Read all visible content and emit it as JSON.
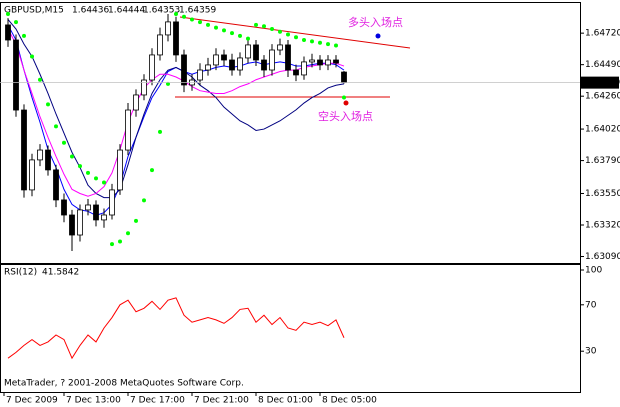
{
  "chart_data": [
    {
      "type": "candlestick",
      "title": "GBPUSD,M15",
      "open": [
        1.6478,
        1.6467,
        1.64159,
        1.63576,
        1.63795,
        1.63867,
        1.63722,
        1.63503,
        1.63393,
        1.63247,
        1.6343,
        1.63466,
        1.63357,
        1.63393,
        1.63576,
        1.63867,
        1.64159,
        1.64269,
        1.64378,
        1.64561,
        1.64707,
        1.64802,
        1.64561,
        1.64342,
        1.64378,
        1.64451,
        1.64488,
        1.64561,
        1.64524,
        1.64451,
        1.64539,
        1.64634,
        1.64524,
        1.64451,
        1.64597,
        1.64634,
        1.64451,
        1.64415,
        1.6451,
        1.64524,
        1.64488,
        1.64524,
        1.64436
      ],
      "high": [
        1.6483,
        1.6471,
        1.642,
        1.6384,
        1.6391,
        1.639,
        1.6376,
        1.6355,
        1.6343,
        1.6347,
        1.6351,
        1.635,
        1.6344,
        1.6362,
        1.6391,
        1.6421,
        1.6431,
        1.6442,
        1.6461,
        1.6476,
        1.6486,
        1.6484,
        1.646,
        1.6442,
        1.645,
        1.6454,
        1.6461,
        1.646,
        1.6457,
        1.6458,
        1.6468,
        1.6467,
        1.6456,
        1.6464,
        1.6468,
        1.6467,
        1.6449,
        1.6455,
        1.6457,
        1.6456,
        1.6456,
        1.6456,
        1.64444
      ],
      "low": [
        1.6462,
        1.6411,
        1.6352,
        1.6353,
        1.6375,
        1.6368,
        1.6345,
        1.6334,
        1.6313,
        1.632,
        1.6339,
        1.6331,
        1.633,
        1.6336,
        1.6354,
        1.6383,
        1.6411,
        1.6423,
        1.6434,
        1.6452,
        1.6466,
        1.6451,
        1.6429,
        1.643,
        1.6434,
        1.6441,
        1.6445,
        1.6448,
        1.6441,
        1.6441,
        1.645,
        1.6448,
        1.644,
        1.6441,
        1.6456,
        1.644,
        1.6437,
        1.6438,
        1.6447,
        1.6445,
        1.6445,
        1.6447,
        1.64353
      ],
      "close": [
        1.6467,
        1.64159,
        1.63576,
        1.63795,
        1.63867,
        1.63722,
        1.63503,
        1.63393,
        1.63247,
        1.6343,
        1.63466,
        1.63357,
        1.63393,
        1.63576,
        1.63867,
        1.64159,
        1.64269,
        1.64378,
        1.64561,
        1.64707,
        1.64802,
        1.64561,
        1.64342,
        1.64378,
        1.64451,
        1.64488,
        1.64561,
        1.64524,
        1.64451,
        1.64539,
        1.64634,
        1.64524,
        1.64451,
        1.64597,
        1.64634,
        1.64451,
        1.64415,
        1.6451,
        1.64524,
        1.64488,
        1.64524,
        1.64502,
        1.64359
      ],
      "series": [
        {
          "color": "#0000ff",
          "values": [
            1.6478,
            1.6467,
            1.6445,
            1.6425,
            1.6407,
            1.6387,
            1.6374,
            1.6358,
            1.6347,
            1.6343,
            1.6342,
            1.6339,
            1.6341,
            1.6347,
            1.6361,
            1.6382,
            1.6396,
            1.6411,
            1.6425,
            1.6434,
            1.6444,
            1.6447,
            1.6444,
            1.6442,
            1.6444,
            1.6445,
            1.6447,
            1.6448,
            1.6447,
            1.6448,
            1.645,
            1.6451,
            1.6449,
            1.645,
            1.6451,
            1.645,
            1.6448,
            1.6448,
            1.6449,
            1.645,
            1.645,
            1.6449,
            1.6445
          ]
        },
        {
          "color": "#000080",
          "values": [
            1.6482,
            1.6475,
            1.6464,
            1.6455,
            1.6442,
            1.6428,
            1.6413,
            1.6399,
            1.6385,
            1.6374,
            1.6361,
            1.6355,
            1.6352,
            1.6352,
            1.6358,
            1.6376,
            1.6396,
            1.6413,
            1.6428,
            1.6438,
            1.6445,
            1.6447,
            1.6444,
            1.644,
            1.6434,
            1.643,
            1.6425,
            1.6418,
            1.6413,
            1.6408,
            1.6405,
            1.6401,
            1.6402,
            1.6405,
            1.6408,
            1.6412,
            1.6416,
            1.6421,
            1.6425,
            1.6428,
            1.6432,
            1.6434,
            1.6435
          ]
        },
        {
          "color": "#ff00ff",
          "values": [
            1.6475,
            1.6464,
            1.6445,
            1.6428,
            1.6411,
            1.6396,
            1.6382,
            1.6369,
            1.6358,
            1.6355,
            1.6353,
            1.6355,
            1.636,
            1.637,
            1.6387,
            1.6407,
            1.6421,
            1.6432,
            1.6438,
            1.6442,
            1.6442,
            1.644,
            1.6437,
            1.6433,
            1.643,
            1.6429,
            1.6428,
            1.6428,
            1.643,
            1.6433,
            1.6435,
            1.6438,
            1.644,
            1.6442,
            1.6444,
            1.6445,
            1.6445,
            1.6447,
            1.6448,
            1.6449,
            1.645,
            1.645,
            1.6448
          ]
        }
      ],
      "sar": {
        "color": "#00ff00",
        "values": [
          1.6486,
          1.648,
          1.647,
          1.6455,
          1.6438,
          1.642,
          1.6404,
          1.6392,
          1.6382,
          1.6375,
          1.637,
          1.6366,
          1.6363,
          1.6318,
          1.632,
          1.6326,
          1.6335,
          1.635,
          1.6372,
          1.64,
          1.6435,
          1.6486,
          1.6484,
          1.6482,
          1.648,
          1.6478,
          1.6476,
          1.6474,
          1.6472,
          1.647,
          1.6468,
          1.6478,
          1.6477,
          1.6475,
          1.6473,
          1.6471,
          1.6469,
          1.6467,
          1.6466,
          1.6465,
          1.6464,
          1.6463,
          1.6425
        ]
      },
      "ylim": [
        1.6305,
        1.6494
      ],
      "yticks": [
        {
          "value": 1.6472,
          "label": "1.64720"
        },
        {
          "value": 1.6449,
          "label": "1.64490"
        },
        {
          "value": 1.6426,
          "label": "1.64260"
        },
        {
          "value": 1.6402,
          "label": "1.64020"
        },
        {
          "value": 1.6379,
          "label": "1.63790"
        },
        {
          "value": 1.6355,
          "label": "1.63550"
        },
        {
          "value": 1.6332,
          "label": "1.63320"
        },
        {
          "value": 1.6309,
          "label": "1.63090"
        }
      ],
      "x_labels": [
        "7 Dec 2009",
        "7 Dec 13:00",
        "7 Dec 17:00",
        "7 Dec 21:00",
        "8 Dec 01:00",
        "8 Dec 05:00"
      ]
    },
    {
      "type": "line",
      "title": "RSI(12)",
      "color": "#ff0000",
      "values": [
        24,
        29,
        35,
        40,
        35,
        38,
        44,
        40,
        24,
        35,
        44,
        38,
        50,
        59,
        70,
        74,
        64,
        67,
        73,
        66,
        74,
        76,
        61,
        55,
        57,
        59,
        57,
        54,
        59,
        66,
        67,
        55,
        61,
        53,
        59,
        50,
        48,
        55,
        53,
        55,
        52,
        57,
        41.5842
      ],
      "ylim": [
        0,
        100
      ],
      "yticks": [
        100,
        70,
        30
      ]
    }
  ],
  "annotations": [
    "多头入场点",
    "空头入场点"
  ],
  "footer": "MetaTrader, ? 2001-2008 MetaQuotes Software Corp."
}
